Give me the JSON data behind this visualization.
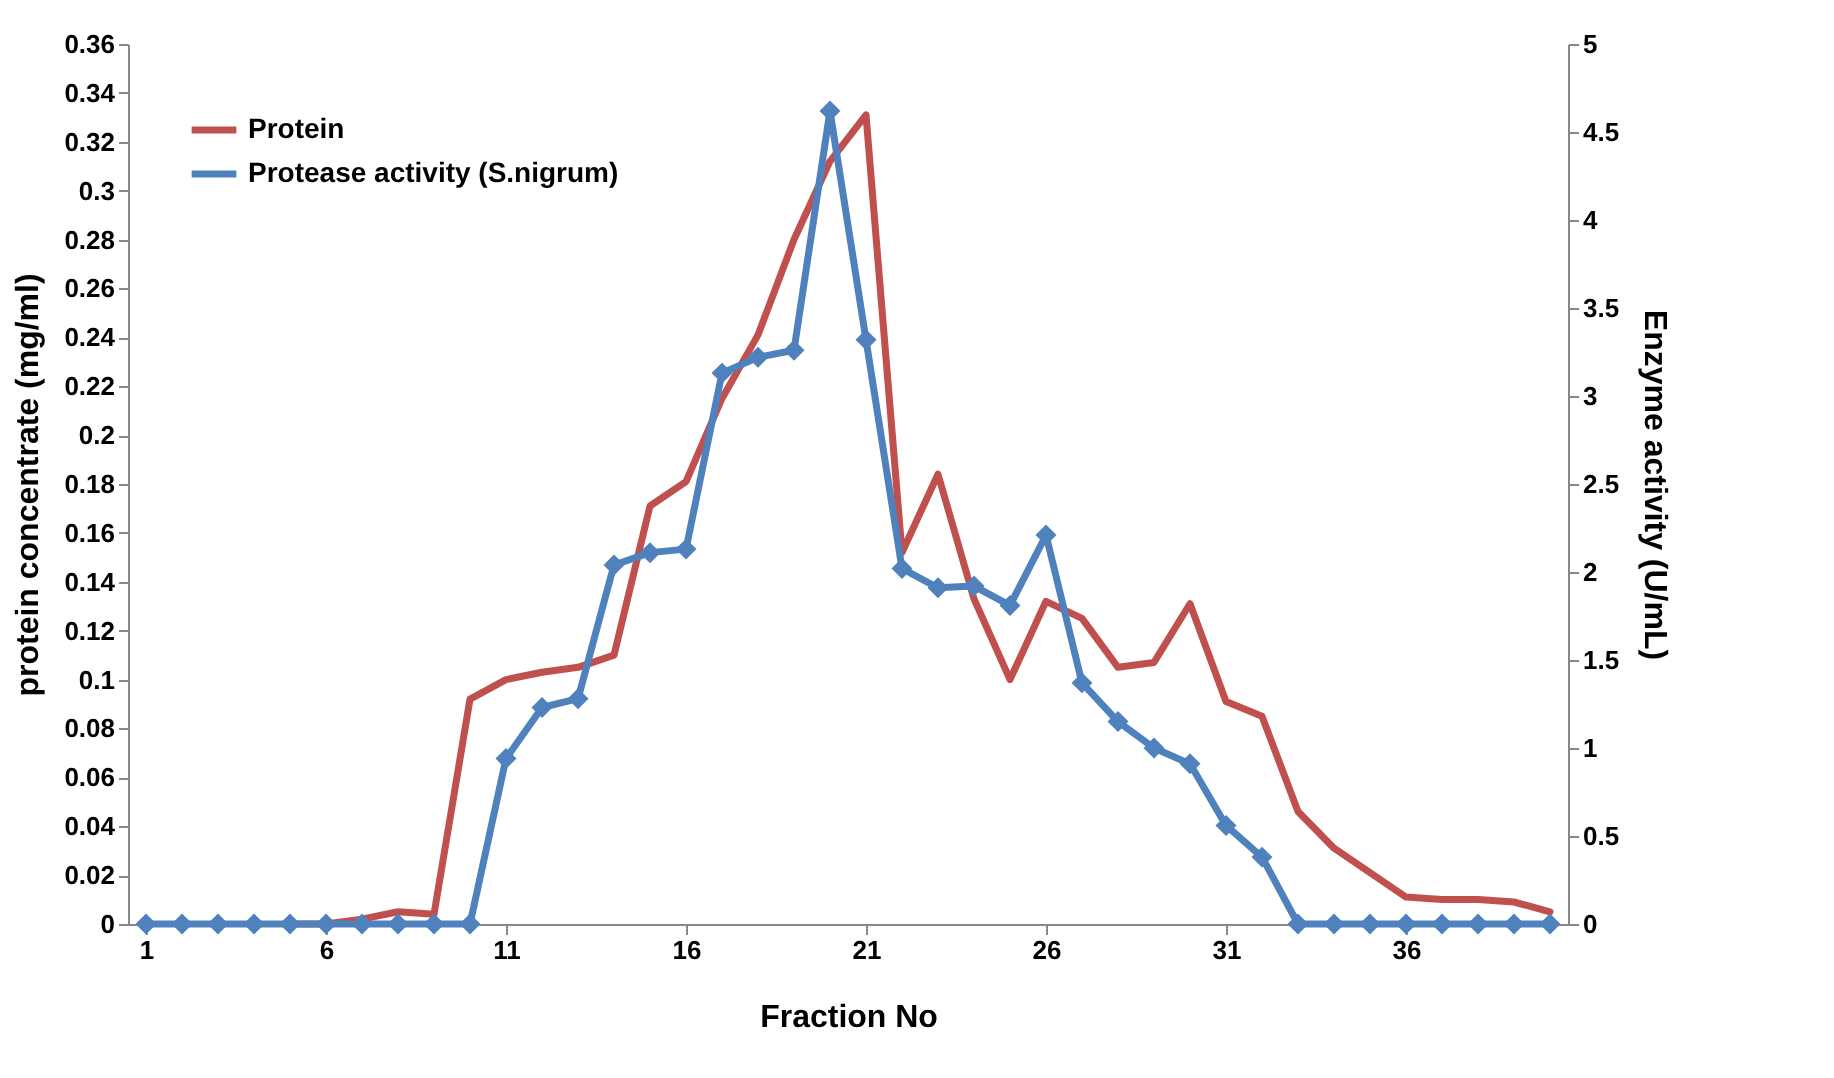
{
  "chart_data": {
    "type": "line",
    "xlabel": "Fraction No",
    "ylabel": "protein concentrate (mg/ml)",
    "y2label": "Enzyme activity (U/mL)",
    "x": [
      1,
      2,
      3,
      4,
      5,
      6,
      7,
      8,
      9,
      10,
      11,
      12,
      13,
      14,
      15,
      16,
      17,
      18,
      19,
      20,
      21,
      22,
      23,
      24,
      25,
      26,
      27,
      28,
      29,
      30,
      31,
      32,
      33,
      34,
      35,
      36,
      37,
      38,
      39,
      40
    ],
    "xlim": [
      0.5,
      40.5
    ],
    "xticks": [
      1,
      6,
      11,
      16,
      21,
      26,
      31,
      36
    ],
    "ylim": [
      0,
      0.36
    ],
    "yticks": [
      0,
      0.02,
      0.04,
      0.06,
      0.08,
      0.1,
      0.12,
      0.14,
      0.16,
      0.18,
      0.2,
      0.22,
      0.24,
      0.26,
      0.28,
      0.3,
      0.32,
      0.34,
      0.36
    ],
    "y2lim": [
      0,
      5
    ],
    "y2ticks": [
      0,
      0.5,
      1,
      1.5,
      2,
      2.5,
      3,
      3.5,
      4,
      4.5,
      5
    ],
    "grid": false,
    "legend": "top left",
    "line_style": "solid",
    "series": [
      {
        "name": "Protein",
        "color": "#c0504d",
        "marker": "none",
        "values": [
          null,
          null,
          null,
          null,
          0,
          0,
          0.002,
          0.005,
          0.004,
          0.092,
          0.1,
          0.103,
          0.105,
          0.11,
          0.171,
          0.181,
          0.215,
          0.241,
          0.28,
          0.312,
          0.331,
          0.152,
          0.184,
          0.133,
          0.1,
          0.132,
          0.125,
          0.105,
          0.107,
          0.131,
          0.091,
          0.085,
          0.046,
          0.031,
          0.021,
          0.011,
          0.01,
          0.01,
          0.009,
          0.005
        ]
      },
      {
        "name": "Protease activity (S.nigrum)",
        "color": "#4f81bd",
        "marker": "diamond",
        "axis": "y2",
        "values": [
          0,
          0,
          0,
          0,
          0,
          0,
          0,
          0,
          0,
          0,
          0.94,
          1.23,
          1.28,
          2.04,
          2.11,
          2.13,
          3.13,
          3.22,
          3.26,
          4.62,
          3.32,
          2.02,
          1.91,
          1.92,
          1.81,
          2.21,
          1.37,
          1.15,
          1.0,
          0.91,
          0.56,
          0.38,
          0,
          0,
          0,
          0,
          0,
          0,
          0,
          0
        ]
      }
    ]
  }
}
